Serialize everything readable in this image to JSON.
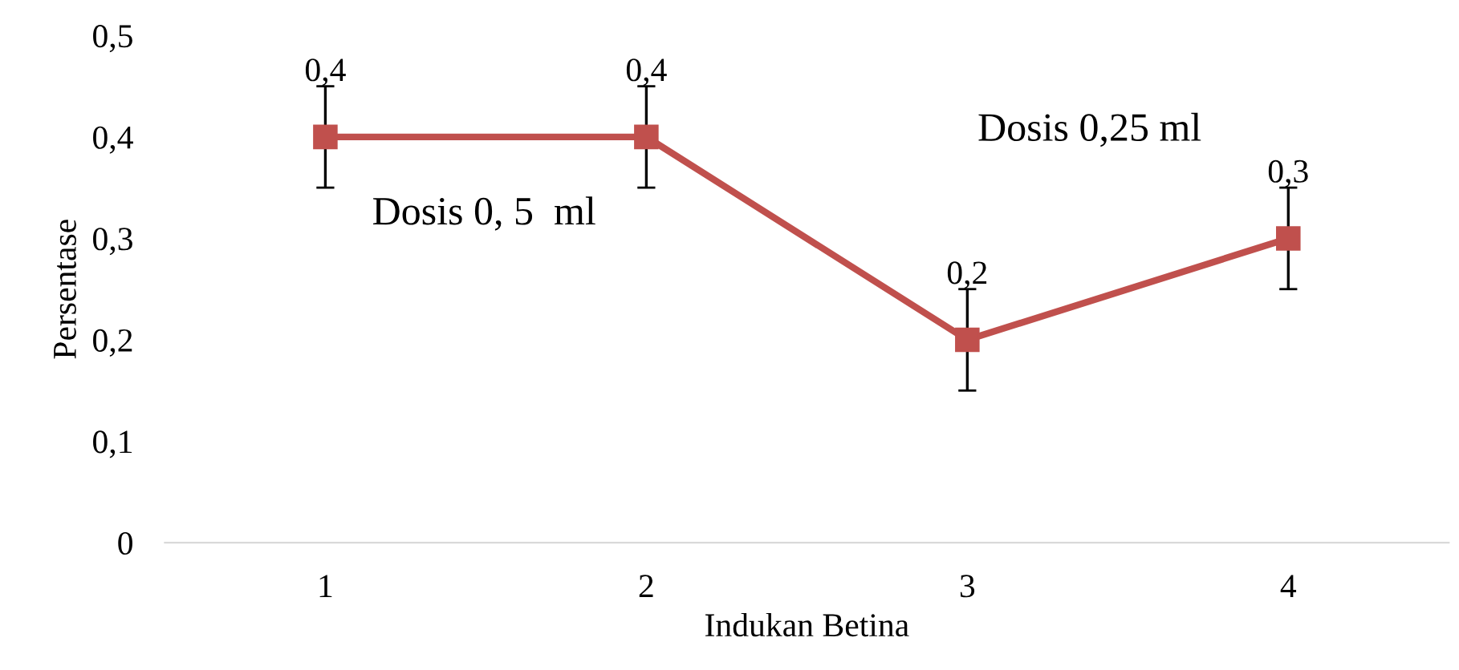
{
  "chart_data": {
    "type": "line",
    "xlabel": "Indukan Betina",
    "ylabel": "Persentase",
    "categories": [
      "1",
      "2",
      "3",
      "4"
    ],
    "series": [
      {
        "color": "#c0504d",
        "values": [
          0.4,
          0.4,
          0.2,
          0.3
        ],
        "errors": [
          0.05,
          0.05,
          0.05,
          0.05
        ],
        "value_labels": [
          "0,4",
          "0,4",
          "0,2",
          "0,3"
        ]
      }
    ],
    "ylim": [
      0,
      0.5
    ],
    "yticks": [
      {
        "value": 0,
        "label": "0"
      },
      {
        "value": 0.1,
        "label": "0,1"
      },
      {
        "value": 0.2,
        "label": "0,2"
      },
      {
        "value": 0.3,
        "label": "0,3"
      },
      {
        "value": 0.4,
        "label": "0,4"
      },
      {
        "value": 0.5,
        "label": "0,5"
      }
    ],
    "marker": "square",
    "line_style": "solid",
    "grid": false,
    "annotations": [
      "Dosis 0, 5  ml",
      "Dosis 0,25 ml"
    ]
  }
}
